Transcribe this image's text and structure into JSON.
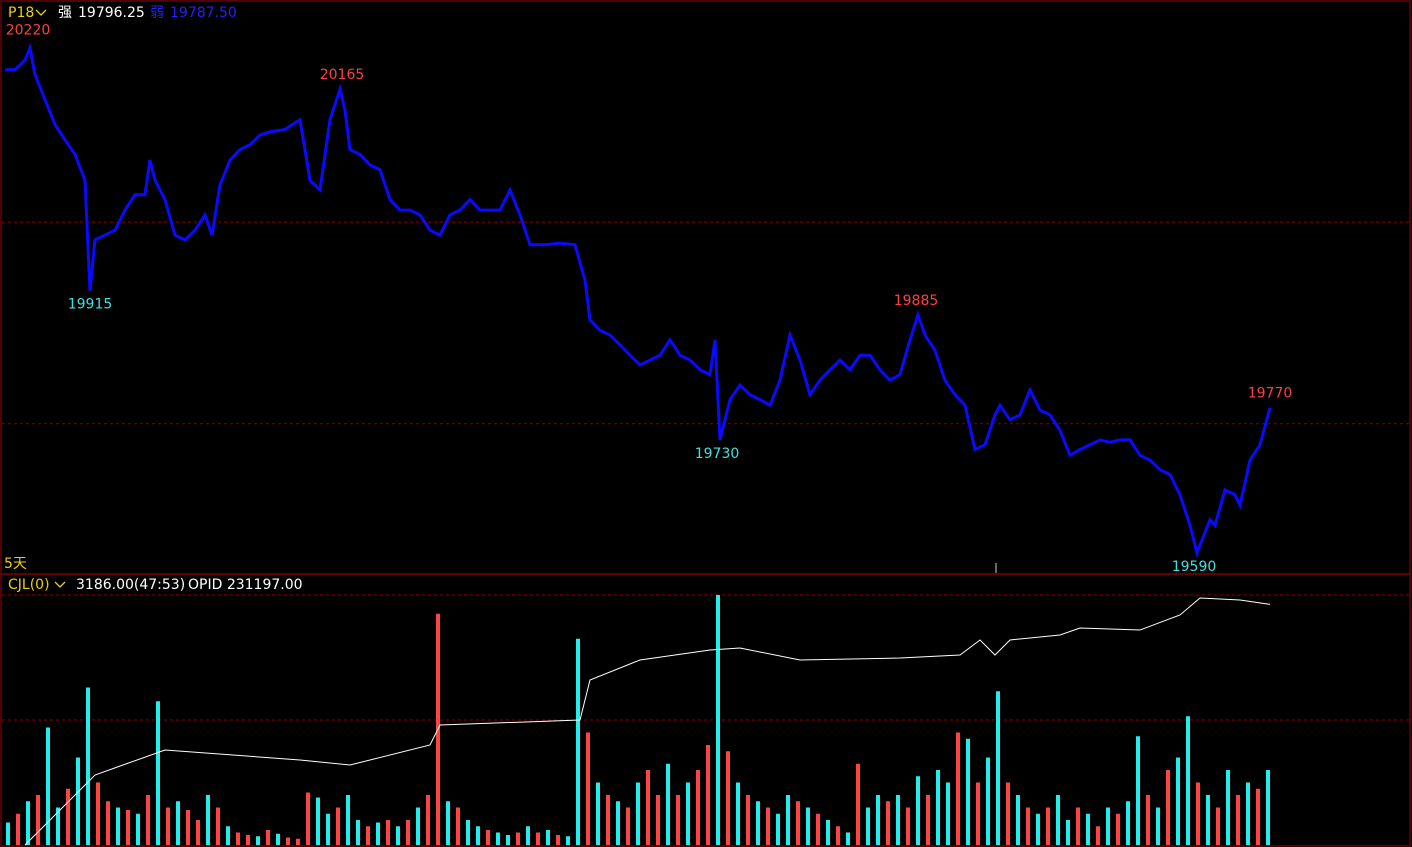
{
  "header": {
    "period": "P18",
    "strong_label": "强",
    "strong_value": "19796.25",
    "weak_label": "弱",
    "weak_value": "19787.50",
    "range": "5天"
  },
  "volume_header": {
    "indicator": "CJL(0)",
    "value": "3186.00(47:53)",
    "opid": "OPID 231197.00"
  },
  "chart_data": [
    {
      "type": "line",
      "color": "#0a0aff",
      "grid": true,
      "xlim": [
        0,
        1412
      ],
      "ylim": [
        19565,
        20273
      ],
      "yticks": [
        19750,
        20000
      ],
      "x": [
        5,
        15,
        25,
        30,
        35,
        45,
        55,
        65,
        75,
        85,
        90,
        95,
        105,
        115,
        125,
        135,
        145,
        150,
        155,
        165,
        175,
        185,
        195,
        205,
        212,
        220,
        230,
        240,
        250,
        260,
        270,
        285,
        300,
        305,
        310,
        320,
        330,
        340,
        345,
        350,
        360,
        370,
        380,
        390,
        400,
        410,
        420,
        430,
        440,
        450,
        460,
        470,
        480,
        490,
        500,
        510,
        520,
        530,
        545,
        560,
        575,
        585,
        590,
        600,
        610,
        620,
        630,
        640,
        650,
        660,
        670,
        680,
        690,
        700,
        710,
        715,
        720,
        730,
        740,
        750,
        760,
        770,
        780,
        790,
        800,
        810,
        820,
        830,
        840,
        850,
        860,
        870,
        880,
        890,
        900,
        910,
        918,
        925,
        935,
        945,
        955,
        965,
        975,
        985,
        995,
        1000,
        1010,
        1020,
        1030,
        1040,
        1050,
        1060,
        1070,
        1080,
        1090,
        1100,
        1110,
        1120,
        1130,
        1140,
        1150,
        1160,
        1170,
        1180,
        1190,
        1197,
        1210,
        1215,
        1225,
        1235,
        1240,
        1250,
        1260,
        1270
      ],
      "values": [
        20189,
        20189,
        20201,
        20216,
        20183,
        20152,
        20121,
        20102,
        20084,
        20052,
        19915,
        19978,
        19984,
        19990,
        20015,
        20034,
        20034,
        20077,
        20052,
        20028,
        19984,
        19978,
        19990,
        20009,
        19984,
        20046,
        20077,
        20090,
        20096,
        20108,
        20112,
        20115,
        20127,
        20090,
        20052,
        20040,
        20127,
        20165,
        20139,
        20090,
        20084,
        20071,
        20065,
        20028,
        20015,
        20015,
        20009,
        19990,
        19984,
        20009,
        20015,
        20028,
        20015,
        20015,
        20015,
        20040,
        20009,
        19972,
        19972,
        19974,
        19972,
        19928,
        19879,
        19866,
        19860,
        19848,
        19835,
        19823,
        19829,
        19835,
        19854,
        19835,
        19829,
        19817,
        19811,
        19854,
        19730,
        19780,
        19798,
        19786,
        19780,
        19773,
        19804,
        19860,
        19829,
        19786,
        19804,
        19817,
        19829,
        19817,
        19835,
        19835,
        19817,
        19804,
        19811,
        19854,
        19885,
        19860,
        19841,
        19804,
        19786,
        19773,
        19718,
        19724,
        19761,
        19773,
        19755,
        19761,
        19792,
        19767,
        19761,
        19742,
        19711,
        19718,
        19724,
        19730,
        19727,
        19730,
        19730,
        19711,
        19705,
        19693,
        19687,
        19662,
        19624,
        19590,
        19631,
        19624,
        19668,
        19662,
        19649,
        19705,
        19724,
        19770
      ],
      "annotations": [
        {
          "value": 20220,
          "x": 28,
          "color": "#ff4040"
        },
        {
          "value": 20165,
          "x": 342,
          "color": "#ff4040"
        },
        {
          "value": 19915,
          "x": 90,
          "color": "#40e0e0"
        },
        {
          "value": 19730,
          "x": 717,
          "color": "#40e0e0"
        },
        {
          "value": 19885,
          "x": 916,
          "color": "#ff4040"
        },
        {
          "value": 19770,
          "x": 1270,
          "color": "#ff4040"
        },
        {
          "value": 19590,
          "x": 1194,
          "color": "#40e0e0"
        }
      ]
    },
    {
      "type": "bar",
      "grid": true,
      "ylim": [
        0,
        2160
      ],
      "yticks": [
        1000,
        2000
      ],
      "values": [
        180,
        250,
        350,
        400,
        940,
        300,
        450,
        700,
        1260,
        500,
        350,
        300,
        280,
        250,
        400,
        1150,
        300,
        350,
        280,
        200,
        400,
        300,
        150,
        100,
        80,
        70,
        120,
        90,
        60,
        50,
        420,
        380,
        250,
        300,
        400,
        200,
        150,
        180,
        200,
        150,
        200,
        300,
        400,
        1850,
        350,
        300,
        200,
        150,
        120,
        100,
        80,
        100,
        150,
        100,
        120,
        80,
        70,
        1650,
        900,
        500,
        400,
        350,
        300,
        500,
        600,
        400,
        650,
        400,
        500,
        600,
        800,
        2000,
        750,
        500,
        400,
        350,
        300,
        250,
        400,
        350,
        300,
        250,
        200,
        150,
        100,
        650,
        300,
        400,
        350,
        400,
        300,
        550,
        400,
        600,
        500,
        900,
        850,
        500,
        700,
        1230,
        500,
        400,
        300,
        250,
        300,
        400,
        200,
        300,
        250,
        150,
        300,
        250,
        350,
        870,
        400,
        300,
        600,
        700,
        1030,
        500,
        400,
        300,
        600,
        400,
        500,
        450,
        600
      ],
      "colors": [
        "#2ee",
        "#f44",
        "#2ee",
        "#f44",
        "#2ee",
        "#2ee",
        "#f44",
        "#2ee",
        "#2ee",
        "#f44",
        "#f44",
        "#2ee",
        "#f44",
        "#2ee",
        "#f44",
        "#2ee",
        "#f44",
        "#2ee",
        "#f44",
        "#f44",
        "#2ee",
        "#f44",
        "#2ee",
        "#f44",
        "#f44",
        "#2ee",
        "#f44",
        "#2ee",
        "#f44",
        "#f44",
        "#f44",
        "#2ee",
        "#2ee",
        "#f44",
        "#2ee",
        "#2ee",
        "#f44",
        "#2ee",
        "#f44",
        "#2ee",
        "#f44",
        "#2ee",
        "#f44",
        "#f44",
        "#2ee",
        "#f44",
        "#2ee",
        "#2ee",
        "#f44",
        "#2ee",
        "#2ee",
        "#f44",
        "#2ee",
        "#f44",
        "#2ee",
        "#f44",
        "#2ee",
        "#2ee",
        "#f44",
        "#2ee",
        "#f44",
        "#2ee",
        "#f44",
        "#2ee",
        "#f44",
        "#f44",
        "#2ee",
        "#f44",
        "#2ee",
        "#f44",
        "#f44",
        "#2ee",
        "#f44",
        "#2ee",
        "#f44",
        "#2ee",
        "#f44",
        "#2ee",
        "#2ee",
        "#f44",
        "#2ee",
        "#f44",
        "#2ee",
        "#f44",
        "#2ee",
        "#f44",
        "#2ee",
        "#2ee",
        "#f44",
        "#2ee",
        "#f44",
        "#2ee",
        "#f44",
        "#2ee",
        "#2ee",
        "#f44",
        "#2ee",
        "#f44",
        "#2ee",
        "#2ee",
        "#f44",
        "#2ee",
        "#f44",
        "#2ee",
        "#f44",
        "#2ee",
        "#2ee",
        "#f44",
        "#2ee",
        "#f44",
        "#2ee",
        "#f44",
        "#2ee",
        "#2ee",
        "#f44",
        "#2ee",
        "#f44",
        "#2ee",
        "#2ee",
        "#f44",
        "#2ee",
        "#f44",
        "#2ee",
        "#f44",
        "#2ee",
        "#f44",
        "#2ee"
      ],
      "y2lim": [
        200000,
        235000
      ],
      "line": {
        "color": "#ffffff",
        "axis": "y2",
        "x": [
          25,
          95,
          165,
          300,
          350,
          430,
          440,
          580,
          590,
          640,
          710,
          740,
          800,
          900,
          960,
          980,
          995,
          1010,
          1060,
          1080,
          1140,
          1180,
          1200,
          1240,
          1270
        ],
        "values": [
          200000,
          209074,
          212315,
          211019,
          210370,
          212963,
          215556,
          216204,
          221389,
          223982,
          225278,
          225537,
          223982,
          224241,
          224630,
          226574,
          224630,
          226574,
          227222,
          228130,
          227870,
          229815,
          232019,
          231759,
          231197
        ]
      }
    }
  ]
}
